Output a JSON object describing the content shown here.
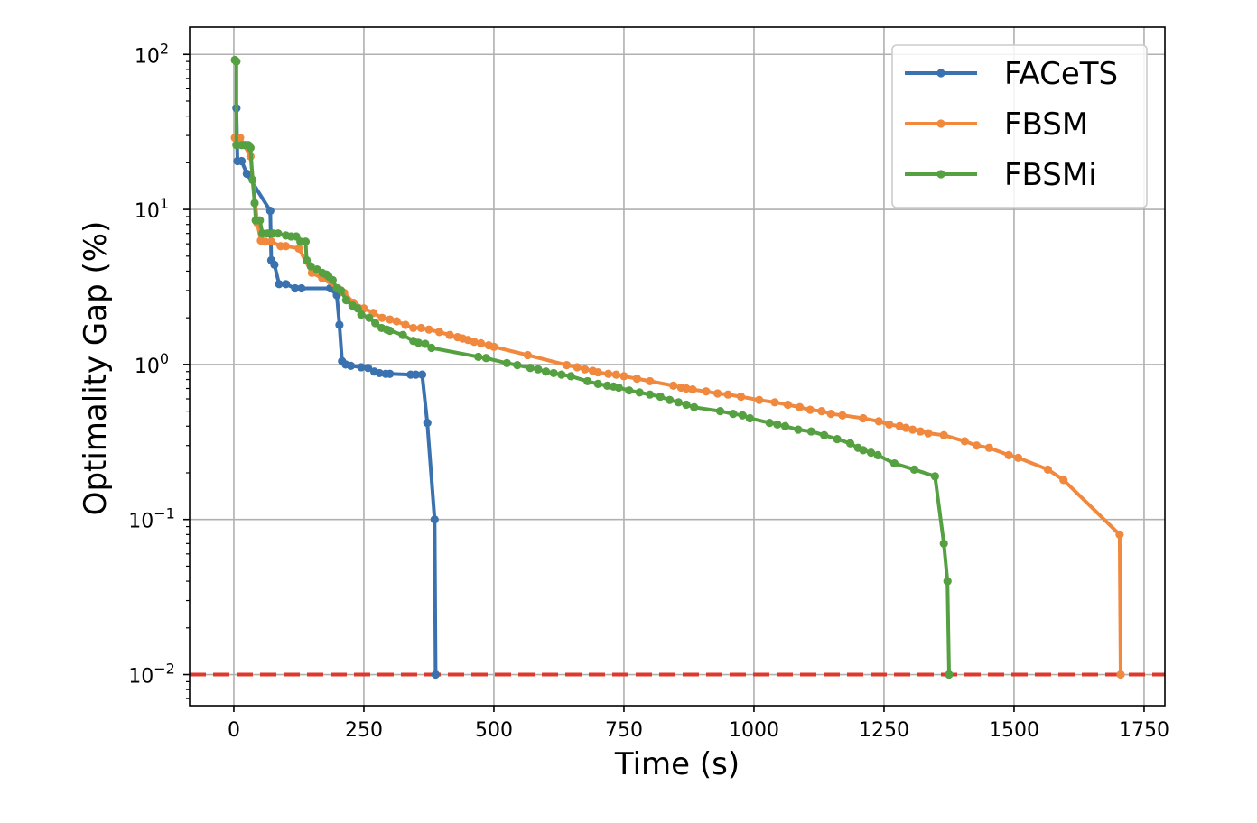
{
  "chart_data": {
    "type": "line",
    "xlabel": "Time (s)",
    "ylabel": "Optimality Gap (%)",
    "xlim": [
      -85,
      1790
    ],
    "ylim": [
      0.0063,
      150
    ],
    "yscale": "log",
    "grid": true,
    "legend_position": "top-right",
    "x_ticks": [
      0,
      250,
      500,
      750,
      1000,
      1250,
      1500,
      1750
    ],
    "x_tick_labels": [
      "0",
      "250",
      "500",
      "750",
      "1000",
      "1250",
      "1500",
      "1750"
    ],
    "y_ticks": [
      {
        "value": 0.01,
        "base": "10",
        "exp": "−2"
      },
      {
        "value": 0.1,
        "base": "10",
        "exp": "−1"
      },
      {
        "value": 1,
        "base": "10",
        "exp": "0"
      },
      {
        "value": 10,
        "base": "10",
        "exp": "1"
      },
      {
        "value": 100,
        "base": "10",
        "exp": "2"
      }
    ],
    "threshold": {
      "value": 0.01,
      "color": "#e0382c",
      "style": "dashed"
    },
    "series": [
      {
        "name": "FACeTS",
        "color": "#3a72b0",
        "points": [
          [
            5,
            45
          ],
          [
            7,
            20.5
          ],
          [
            15,
            20.5
          ],
          [
            25,
            17
          ],
          [
            70,
            9.8
          ],
          [
            72,
            4.7
          ],
          [
            78,
            4.4
          ],
          [
            87,
            3.3
          ],
          [
            100,
            3.3
          ],
          [
            118,
            3.1
          ],
          [
            130,
            3.1
          ],
          [
            185,
            3.1
          ],
          [
            198,
            2.8
          ],
          [
            203,
            1.8
          ],
          [
            208,
            1.05
          ],
          [
            215,
            1.0
          ],
          [
            225,
            0.98
          ],
          [
            245,
            0.96
          ],
          [
            258,
            0.95
          ],
          [
            270,
            0.9
          ],
          [
            280,
            0.88
          ],
          [
            292,
            0.87
          ],
          [
            300,
            0.87
          ],
          [
            340,
            0.86
          ],
          [
            350,
            0.86
          ],
          [
            362,
            0.86
          ],
          [
            372,
            0.42
          ],
          [
            386,
            0.1
          ],
          [
            388,
            0.01
          ]
        ]
      },
      {
        "name": "FBSM",
        "color": "#f0883e",
        "points": [
          [
            2,
            29
          ],
          [
            12,
            29
          ],
          [
            20,
            26
          ],
          [
            32,
            22
          ],
          [
            45,
            8.2
          ],
          [
            52,
            6.3
          ],
          [
            60,
            6.2
          ],
          [
            72,
            6.2
          ],
          [
            90,
            5.8
          ],
          [
            100,
            5.8
          ],
          [
            125,
            5.6
          ],
          [
            150,
            3.9
          ],
          [
            170,
            3.6
          ],
          [
            200,
            3.1
          ],
          [
            212,
            2.9
          ],
          [
            230,
            2.5
          ],
          [
            250,
            2.3
          ],
          [
            268,
            2.15
          ],
          [
            285,
            2.0
          ],
          [
            300,
            1.95
          ],
          [
            313,
            1.9
          ],
          [
            330,
            1.8
          ],
          [
            345,
            1.72
          ],
          [
            360,
            1.72
          ],
          [
            375,
            1.68
          ],
          [
            395,
            1.62
          ],
          [
            415,
            1.55
          ],
          [
            430,
            1.5
          ],
          [
            440,
            1.47
          ],
          [
            450,
            1.44
          ],
          [
            462,
            1.4
          ],
          [
            475,
            1.37
          ],
          [
            490,
            1.33
          ],
          [
            500,
            1.3
          ],
          [
            565,
            1.15
          ],
          [
            640,
            0.99
          ],
          [
            660,
            0.96
          ],
          [
            675,
            0.93
          ],
          [
            690,
            0.91
          ],
          [
            700,
            0.89
          ],
          [
            720,
            0.87
          ],
          [
            735,
            0.86
          ],
          [
            750,
            0.84
          ],
          [
            775,
            0.81
          ],
          [
            800,
            0.78
          ],
          [
            845,
            0.73
          ],
          [
            860,
            0.71
          ],
          [
            870,
            0.7
          ],
          [
            882,
            0.69
          ],
          [
            908,
            0.67
          ],
          [
            930,
            0.65
          ],
          [
            950,
            0.64
          ],
          [
            975,
            0.62
          ],
          [
            1010,
            0.59
          ],
          [
            1040,
            0.57
          ],
          [
            1065,
            0.55
          ],
          [
            1088,
            0.53
          ],
          [
            1108,
            0.51
          ],
          [
            1130,
            0.5
          ],
          [
            1148,
            0.48
          ],
          [
            1170,
            0.47
          ],
          [
            1210,
            0.45
          ],
          [
            1240,
            0.43
          ],
          [
            1260,
            0.41
          ],
          [
            1280,
            0.4
          ],
          [
            1292,
            0.39
          ],
          [
            1305,
            0.38
          ],
          [
            1320,
            0.37
          ],
          [
            1335,
            0.36
          ],
          [
            1365,
            0.35
          ],
          [
            1405,
            0.32
          ],
          [
            1428,
            0.3
          ],
          [
            1452,
            0.29
          ],
          [
            1490,
            0.26
          ],
          [
            1508,
            0.25
          ],
          [
            1565,
            0.21
          ],
          [
            1595,
            0.18
          ],
          [
            1703,
            0.08
          ],
          [
            1705,
            0.01
          ]
        ]
      },
      {
        "name": "FBSMi",
        "color": "#55a040",
        "points": [
          [
            2,
            92
          ],
          [
            5,
            90
          ],
          [
            5,
            26
          ],
          [
            15,
            26
          ],
          [
            22,
            26
          ],
          [
            28,
            26
          ],
          [
            32,
            25
          ],
          [
            36,
            15.5
          ],
          [
            40,
            11
          ],
          [
            42,
            8.5
          ],
          [
            50,
            8.5
          ],
          [
            55,
            7
          ],
          [
            65,
            7
          ],
          [
            75,
            7
          ],
          [
            85,
            7
          ],
          [
            100,
            6.8
          ],
          [
            110,
            6.7
          ],
          [
            120,
            6.7
          ],
          [
            128,
            6.2
          ],
          [
            138,
            6.2
          ],
          [
            140,
            4.7
          ],
          [
            148,
            4.3
          ],
          [
            160,
            4.1
          ],
          [
            170,
            3.9
          ],
          [
            178,
            3.8
          ],
          [
            182,
            3.7
          ],
          [
            190,
            3.5
          ],
          [
            198,
            3.1
          ],
          [
            206,
            3.0
          ],
          [
            216,
            2.6
          ],
          [
            228,
            2.4
          ],
          [
            238,
            2.3
          ],
          [
            245,
            2.1
          ],
          [
            260,
            2.0
          ],
          [
            272,
            1.85
          ],
          [
            284,
            1.72
          ],
          [
            294,
            1.68
          ],
          [
            300,
            1.65
          ],
          [
            325,
            1.55
          ],
          [
            345,
            1.42
          ],
          [
            355,
            1.38
          ],
          [
            368,
            1.36
          ],
          [
            380,
            1.28
          ],
          [
            470,
            1.12
          ],
          [
            485,
            1.1
          ],
          [
            525,
            1.02
          ],
          [
            545,
            0.99
          ],
          [
            570,
            0.95
          ],
          [
            585,
            0.93
          ],
          [
            600,
            0.9
          ],
          [
            615,
            0.88
          ],
          [
            630,
            0.86
          ],
          [
            648,
            0.84
          ],
          [
            680,
            0.78
          ],
          [
            700,
            0.75
          ],
          [
            718,
            0.73
          ],
          [
            730,
            0.72
          ],
          [
            740,
            0.71
          ],
          [
            760,
            0.68
          ],
          [
            780,
            0.66
          ],
          [
            800,
            0.64
          ],
          [
            820,
            0.62
          ],
          [
            838,
            0.59
          ],
          [
            855,
            0.57
          ],
          [
            870,
            0.55
          ],
          [
            885,
            0.53
          ],
          [
            935,
            0.5
          ],
          [
            960,
            0.48
          ],
          [
            978,
            0.47
          ],
          [
            992,
            0.45
          ],
          [
            1030,
            0.42
          ],
          [
            1045,
            0.41
          ],
          [
            1060,
            0.4
          ],
          [
            1085,
            0.38
          ],
          [
            1110,
            0.37
          ],
          [
            1135,
            0.35
          ],
          [
            1160,
            0.33
          ],
          [
            1185,
            0.31
          ],
          [
            1200,
            0.29
          ],
          [
            1210,
            0.28
          ],
          [
            1225,
            0.27
          ],
          [
            1238,
            0.26
          ],
          [
            1270,
            0.23
          ],
          [
            1308,
            0.21
          ],
          [
            1348,
            0.19
          ],
          [
            1365,
            0.07
          ],
          [
            1372,
            0.04
          ],
          [
            1375,
            0.01
          ]
        ]
      }
    ]
  }
}
